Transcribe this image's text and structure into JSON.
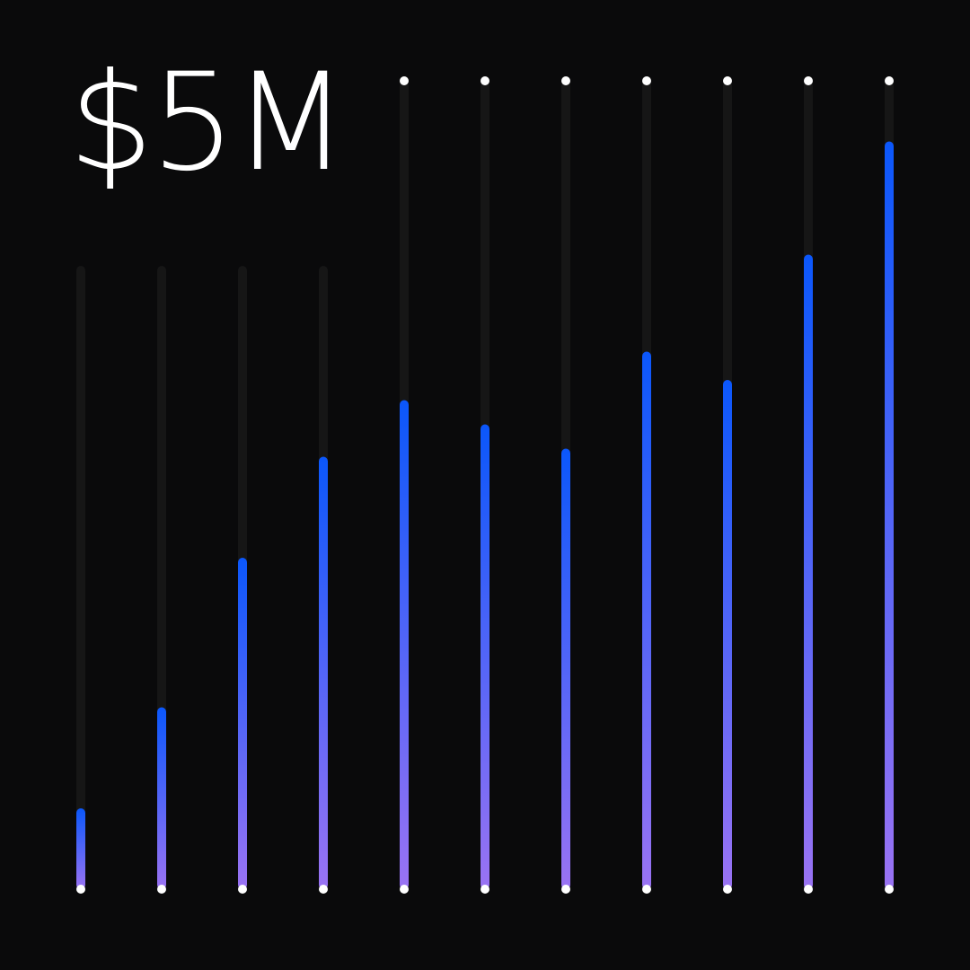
{
  "headline": "$5M",
  "colors": {
    "background": "#0a0a0b",
    "track": "#161616",
    "gradient_top": "#0b57fb",
    "gradient_bottom": "#9a73f3",
    "endpoint_dot": "#ffffff",
    "headline_text": "#ffffff"
  },
  "chart_data": {
    "type": "bar",
    "values": [
      10,
      22.5,
      41,
      53.5,
      60.5,
      57.5,
      54.5,
      66.5,
      63,
      78.5,
      92.5
    ],
    "ylim": [
      0,
      100
    ],
    "grid": false,
    "legend": "none"
  }
}
